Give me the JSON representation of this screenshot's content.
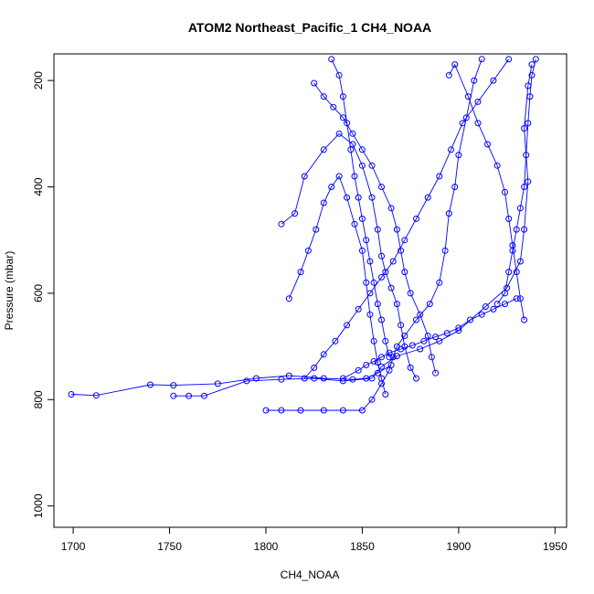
{
  "chart_data": {
    "type": "scatter",
    "title": "ATOM2 Northeast_Pacific_1 CH4_NOAA",
    "xlabel": "CH4_NOAA",
    "ylabel": "Pressure (mbar)",
    "xlim": [
      1690,
      1956
    ],
    "ylim": [
      1040,
      150
    ],
    "y_reversed": true,
    "grid": false,
    "legend": "none",
    "marker": "open-circle",
    "connected": true,
    "colors": {
      "series": "#0000ff",
      "axis": "#000000"
    },
    "x_ticks": [
      1700,
      1750,
      1800,
      1850,
      1900,
      1950
    ],
    "y_ticks": [
      200,
      400,
      600,
      800,
      1000
    ],
    "series": [
      {
        "points": [
          [
            1699,
            790
          ],
          [
            1712,
            792
          ],
          [
            1740,
            772
          ],
          [
            1752,
            773
          ],
          [
            1775,
            770
          ],
          [
            1795,
            760
          ],
          [
            1812,
            755
          ],
          [
            1830,
            760
          ],
          [
            1845,
            762
          ],
          [
            1852,
            760
          ],
          [
            1858,
            750
          ],
          [
            1865,
            735
          ]
        ]
      },
      {
        "points": [
          [
            1752,
            793
          ],
          [
            1760,
            793
          ],
          [
            1768,
            793
          ],
          [
            1790,
            765
          ],
          [
            1808,
            762
          ],
          [
            1825,
            760
          ],
          [
            1840,
            765
          ],
          [
            1855,
            760
          ],
          [
            1860,
            738
          ],
          [
            1868,
            718
          ],
          [
            1880,
            705
          ],
          [
            1890,
            690
          ],
          [
            1900,
            670
          ],
          [
            1914,
            625
          ],
          [
            1925,
            590
          ],
          [
            1932,
            540
          ],
          [
            1934,
            480
          ],
          [
            1936,
            390
          ],
          [
            1934,
            290
          ],
          [
            1936,
            210
          ],
          [
            1938,
            170
          ]
        ]
      },
      {
        "points": [
          [
            1800,
            820
          ],
          [
            1808,
            820
          ],
          [
            1818,
            820
          ],
          [
            1830,
            820
          ],
          [
            1840,
            820
          ],
          [
            1850,
            820
          ],
          [
            1855,
            800
          ],
          [
            1860,
            770
          ],
          [
            1864,
            745
          ],
          [
            1866,
            720
          ],
          [
            1868,
            700
          ],
          [
            1872,
            680
          ],
          [
            1878,
            650
          ],
          [
            1885,
            620
          ],
          [
            1890,
            580
          ],
          [
            1893,
            520
          ],
          [
            1895,
            450
          ],
          [
            1898,
            400
          ],
          [
            1900,
            340
          ],
          [
            1904,
            270
          ],
          [
            1908,
            200
          ],
          [
            1912,
            160
          ]
        ]
      },
      {
        "points": [
          [
            1808,
            470
          ],
          [
            1815,
            450
          ],
          [
            1820,
            380
          ],
          [
            1830,
            330
          ],
          [
            1838,
            300
          ],
          [
            1845,
            320
          ],
          [
            1850,
            360
          ],
          [
            1855,
            420
          ],
          [
            1858,
            480
          ],
          [
            1860,
            530
          ],
          [
            1862,
            560
          ],
          [
            1865,
            590
          ],
          [
            1868,
            620
          ],
          [
            1870,
            660
          ],
          [
            1872,
            700
          ],
          [
            1875,
            740
          ],
          [
            1878,
            760
          ]
        ]
      },
      {
        "points": [
          [
            1812,
            610
          ],
          [
            1818,
            560
          ],
          [
            1822,
            520
          ],
          [
            1826,
            480
          ],
          [
            1830,
            430
          ],
          [
            1834,
            400
          ],
          [
            1838,
            380
          ],
          [
            1842,
            420
          ],
          [
            1846,
            470
          ],
          [
            1850,
            520
          ],
          [
            1852,
            580
          ],
          [
            1854,
            640
          ],
          [
            1856,
            690
          ],
          [
            1858,
            730
          ],
          [
            1860,
            760
          ],
          [
            1862,
            790
          ]
        ]
      },
      {
        "points": [
          [
            1820,
            760
          ],
          [
            1825,
            740
          ],
          [
            1830,
            715
          ],
          [
            1836,
            690
          ],
          [
            1842,
            660
          ],
          [
            1848,
            630
          ],
          [
            1854,
            600
          ],
          [
            1860,
            570
          ],
          [
            1866,
            540
          ],
          [
            1872,
            500
          ],
          [
            1878,
            460
          ],
          [
            1884,
            420
          ],
          [
            1890,
            380
          ],
          [
            1896,
            330
          ],
          [
            1902,
            280
          ],
          [
            1910,
            240
          ],
          [
            1918,
            200
          ],
          [
            1926,
            160
          ]
        ]
      },
      {
        "points": [
          [
            1825,
            205
          ],
          [
            1830,
            230
          ],
          [
            1835,
            250
          ],
          [
            1840,
            270
          ],
          [
            1845,
            300
          ],
          [
            1850,
            330
          ],
          [
            1855,
            360
          ],
          [
            1860,
            400
          ],
          [
            1865,
            440
          ],
          [
            1868,
            480
          ],
          [
            1870,
            520
          ],
          [
            1872,
            560
          ],
          [
            1875,
            600
          ],
          [
            1880,
            640
          ],
          [
            1884,
            680
          ],
          [
            1886,
            720
          ],
          [
            1888,
            750
          ]
        ]
      },
      {
        "points": [
          [
            1834,
            160
          ],
          [
            1838,
            190
          ],
          [
            1840,
            230
          ],
          [
            1842,
            280
          ],
          [
            1844,
            330
          ],
          [
            1846,
            380
          ],
          [
            1848,
            420
          ],
          [
            1850,
            460
          ],
          [
            1852,
            500
          ],
          [
            1854,
            540
          ],
          [
            1856,
            580
          ],
          [
            1858,
            620
          ],
          [
            1860,
            650
          ],
          [
            1862,
            690
          ],
          [
            1864,
            720
          ]
        ]
      },
      {
        "points": [
          [
            1895,
            190
          ],
          [
            1898,
            170
          ],
          [
            1905,
            230
          ],
          [
            1910,
            280
          ],
          [
            1915,
            320
          ],
          [
            1920,
            360
          ],
          [
            1924,
            410
          ],
          [
            1926,
            460
          ],
          [
            1928,
            510
          ],
          [
            1930,
            560
          ],
          [
            1932,
            610
          ],
          [
            1934,
            650
          ]
        ]
      },
      {
        "points": [
          [
            1920,
            620
          ],
          [
            1924,
            600
          ],
          [
            1926,
            560
          ],
          [
            1928,
            520
          ],
          [
            1930,
            480
          ],
          [
            1932,
            440
          ],
          [
            1934,
            400
          ],
          [
            1935,
            340
          ],
          [
            1936,
            280
          ],
          [
            1937,
            230
          ],
          [
            1938,
            190
          ],
          [
            1940,
            160
          ]
        ]
      },
      {
        "points": [
          [
            1840,
            760
          ],
          [
            1848,
            745
          ],
          [
            1852,
            735
          ],
          [
            1856,
            728
          ],
          [
            1860,
            720
          ],
          [
            1864,
            712
          ],
          [
            1870,
            705
          ],
          [
            1876,
            698
          ],
          [
            1882,
            690
          ],
          [
            1888,
            682
          ],
          [
            1894,
            675
          ],
          [
            1900,
            665
          ],
          [
            1906,
            650
          ],
          [
            1912,
            640
          ],
          [
            1918,
            630
          ],
          [
            1924,
            620
          ],
          [
            1930,
            610
          ]
        ]
      }
    ]
  }
}
